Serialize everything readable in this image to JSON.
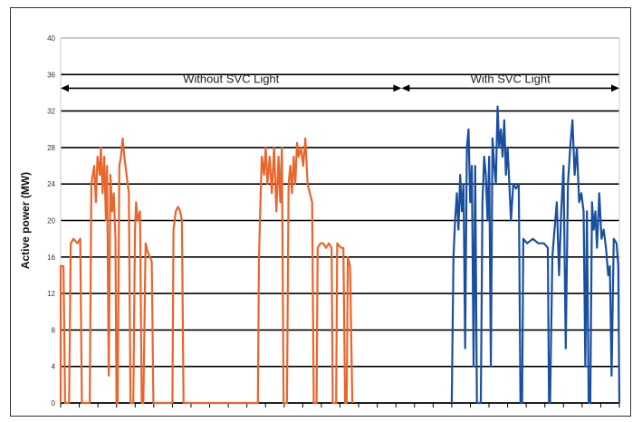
{
  "chart_data": {
    "type": "line",
    "ylabel": "Active power (MW)",
    "xlabel": "",
    "title": "",
    "ylim": [
      0,
      40
    ],
    "yticks": [
      "0",
      "4",
      "8",
      "12",
      "16",
      "20",
      "24",
      "28",
      "32",
      "36",
      "40"
    ],
    "x_tick_count": 31,
    "xlim": [
      0,
      100
    ],
    "grid": "horizontal",
    "annotations": [
      {
        "text": "Without SVC Light",
        "x_from": 0,
        "x_to": 61,
        "y": 34.5
      },
      {
        "text": "With SVC Light",
        "x_from": 61,
        "x_to": 100,
        "y": 34.5
      }
    ],
    "series": [
      {
        "color": "#e8652c",
        "points": [
          [
            0,
            0
          ],
          [
            0,
            15
          ],
          [
            0.5,
            15
          ],
          [
            0.8,
            0
          ],
          [
            1.5,
            0
          ],
          [
            1.8,
            17.5
          ],
          [
            2.3,
            18
          ],
          [
            3,
            17.5
          ],
          [
            3.5,
            18
          ],
          [
            3.8,
            0
          ],
          [
            5.2,
            0
          ],
          [
            5.5,
            24
          ],
          [
            6,
            26
          ],
          [
            6.3,
            22
          ],
          [
            6.6,
            27
          ],
          [
            7,
            25
          ],
          [
            7.2,
            28
          ],
          [
            7.5,
            23
          ],
          [
            7.8,
            27
          ],
          [
            8.1,
            20
          ],
          [
            8.3,
            26
          ],
          [
            8.6,
            3
          ],
          [
            8.9,
            25
          ],
          [
            9.2,
            21
          ],
          [
            9.5,
            23
          ],
          [
            9.8,
            18
          ],
          [
            10,
            0
          ],
          [
            10.2,
            0
          ],
          [
            10.5,
            26
          ],
          [
            10.8,
            27
          ],
          [
            11.1,
            29
          ],
          [
            11.4,
            27
          ],
          [
            11.8,
            25
          ],
          [
            12.2,
            23
          ],
          [
            12.5,
            0
          ],
          [
            13,
            0
          ],
          [
            13.3,
            19
          ],
          [
            13.5,
            22
          ],
          [
            13.8,
            20
          ],
          [
            14.2,
            21
          ],
          [
            14.5,
            0
          ],
          [
            14.8,
            0
          ],
          [
            15.2,
            17.5
          ],
          [
            15.6,
            16.5
          ],
          [
            16,
            16
          ],
          [
            16.3,
            15.5
          ],
          [
            16.6,
            0
          ],
          [
            20,
            0
          ],
          [
            20.2,
            19
          ],
          [
            20.6,
            21
          ],
          [
            21,
            21.5
          ],
          [
            21.4,
            21
          ],
          [
            21.7,
            20
          ],
          [
            22,
            0
          ],
          [
            35.3,
            0
          ],
          [
            35.5,
            16
          ],
          [
            35.8,
            23
          ],
          [
            36,
            27
          ],
          [
            36.4,
            25
          ],
          [
            36.7,
            28
          ],
          [
            37,
            24
          ],
          [
            37.4,
            27
          ],
          [
            37.8,
            23
          ],
          [
            38.2,
            28
          ],
          [
            38.6,
            21
          ],
          [
            39,
            27
          ],
          [
            39.3,
            22
          ],
          [
            39.6,
            28
          ],
          [
            39.9,
            0
          ],
          [
            40.5,
            0
          ],
          [
            40.8,
            24
          ],
          [
            41.1,
            26
          ],
          [
            41.4,
            23
          ],
          [
            41.7,
            27
          ],
          [
            42,
            24
          ],
          [
            42.3,
            28.5
          ],
          [
            42.6,
            27
          ],
          [
            43,
            28
          ],
          [
            43.4,
            26
          ],
          [
            43.8,
            29
          ],
          [
            44.2,
            24
          ],
          [
            44.6,
            23
          ],
          [
            45,
            22
          ],
          [
            45.3,
            0
          ],
          [
            45.8,
            0
          ],
          [
            46,
            17
          ],
          [
            46.5,
            17.5
          ],
          [
            47,
            17.5
          ],
          [
            47.5,
            17
          ],
          [
            48,
            17.5
          ],
          [
            48.5,
            17
          ],
          [
            48.7,
            0
          ],
          [
            49.3,
            0
          ],
          [
            49.5,
            17.5
          ],
          [
            50.2,
            17
          ],
          [
            50.6,
            17
          ],
          [
            50.9,
            0
          ],
          [
            51.2,
            0
          ],
          [
            51.4,
            16
          ],
          [
            51.8,
            15
          ],
          [
            52.2,
            0
          ]
        ]
      },
      {
        "color": "#1a4fa0",
        "points": [
          [
            70,
            0
          ],
          [
            70.3,
            16
          ],
          [
            70.6,
            20
          ],
          [
            70.9,
            23
          ],
          [
            71.2,
            19
          ],
          [
            71.5,
            25
          ],
          [
            71.8,
            21
          ],
          [
            72.1,
            24
          ],
          [
            72.4,
            6
          ],
          [
            72.7,
            28
          ],
          [
            73,
            30
          ],
          [
            73.3,
            22
          ],
          [
            73.6,
            26
          ],
          [
            73.9,
            4
          ],
          [
            74.2,
            26
          ],
          [
            74.5,
            0
          ],
          [
            75.2,
            0
          ],
          [
            75.5,
            22
          ],
          [
            75.8,
            27
          ],
          [
            76.1,
            25
          ],
          [
            76.4,
            20
          ],
          [
            76.7,
            27
          ],
          [
            77,
            4
          ],
          [
            77.3,
            29
          ],
          [
            77.6,
            26
          ],
          [
            77.9,
            24
          ],
          [
            78.2,
            32.5
          ],
          [
            78.5,
            28
          ],
          [
            78.8,
            30
          ],
          [
            79.1,
            27
          ],
          [
            79.4,
            31
          ],
          [
            79.7,
            25
          ],
          [
            80,
            28
          ],
          [
            80.3,
            24
          ],
          [
            80.6,
            20
          ],
          [
            81,
            24
          ],
          [
            81.5,
            23.5
          ],
          [
            82,
            24
          ],
          [
            82.3,
            0
          ],
          [
            82.6,
            0
          ],
          [
            82.8,
            18
          ],
          [
            83.5,
            17.5
          ],
          [
            84.5,
            18
          ],
          [
            85.5,
            17.5
          ],
          [
            86.5,
            17.5
          ],
          [
            87.2,
            17
          ],
          [
            87.4,
            0
          ],
          [
            87.6,
            0
          ],
          [
            88,
            16
          ],
          [
            88.4,
            19
          ],
          [
            88.8,
            22
          ],
          [
            89.2,
            14
          ],
          [
            89.6,
            21
          ],
          [
            90,
            26
          ],
          [
            90.4,
            6
          ],
          [
            90.8,
            24
          ],
          [
            91.2,
            28
          ],
          [
            91.6,
            31
          ],
          [
            92,
            25
          ],
          [
            92.4,
            28
          ],
          [
            92.8,
            22
          ],
          [
            93.2,
            23
          ],
          [
            93.6,
            21
          ],
          [
            93.9,
            4
          ],
          [
            94.2,
            21
          ],
          [
            94.5,
            0
          ],
          [
            94.8,
            0
          ],
          [
            95.1,
            22
          ],
          [
            95.4,
            19
          ],
          [
            95.7,
            21
          ],
          [
            96,
            17
          ],
          [
            96.4,
            23
          ],
          [
            96.8,
            18
          ],
          [
            97.2,
            19
          ],
          [
            97.6,
            17
          ],
          [
            98,
            14
          ],
          [
            98.3,
            15
          ],
          [
            98.6,
            3
          ],
          [
            99,
            18
          ],
          [
            99.5,
            17.5
          ],
          [
            99.8,
            15
          ],
          [
            100,
            0
          ]
        ]
      }
    ]
  }
}
